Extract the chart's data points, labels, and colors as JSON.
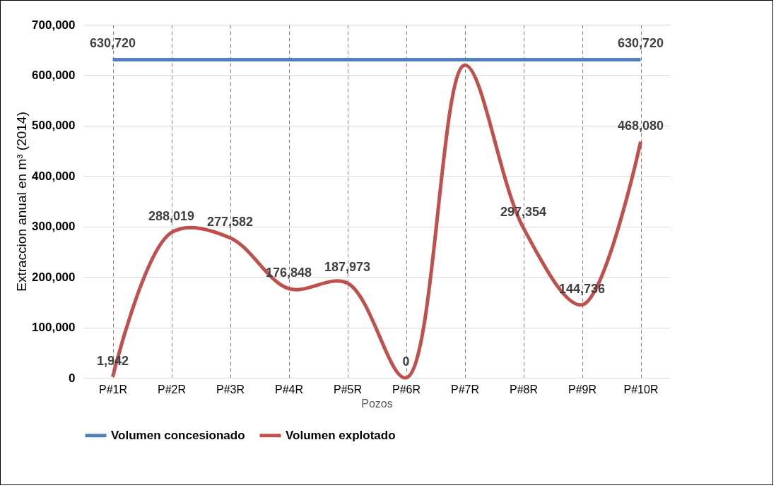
{
  "chart_data": {
    "type": "line",
    "xlabel": "Pozos",
    "ylabel": "Extraccion anual en m³ (2014)",
    "categories": [
      "P#1R",
      "P#2R",
      "P#3R",
      "P#4R",
      "P#5R",
      "P#6R",
      "P#7R",
      "P#8R",
      "P#9R",
      "P#10R"
    ],
    "series": [
      {
        "name": "Volumen concesionado",
        "color": "#4f81bd",
        "values": [
          630720,
          630720,
          630720,
          630720,
          630720,
          630720,
          630720,
          630720,
          630720,
          630720
        ],
        "value_labels": [
          "630,720",
          null,
          null,
          null,
          null,
          null,
          null,
          null,
          null,
          "630,720"
        ]
      },
      {
        "name": "Volumen explotado",
        "color": "#c0504d",
        "values": [
          1942,
          288019,
          277582,
          176848,
          187973,
          0,
          620000,
          297354,
          144736,
          468080
        ],
        "value_labels": [
          "1,942",
          "288,019",
          "277,582",
          "176,848",
          "187,973",
          "0",
          null,
          "297,354",
          "144,736",
          "468,080"
        ]
      }
    ],
    "ylim": [
      0,
      700000
    ],
    "yticks": [
      {
        "value": 0,
        "label": "0"
      },
      {
        "value": 100000,
        "label": "100,000"
      },
      {
        "value": 200000,
        "label": "200,000"
      },
      {
        "value": 300000,
        "label": "300,000"
      },
      {
        "value": 400000,
        "label": "400,000"
      },
      {
        "value": 500000,
        "label": "500,000"
      },
      {
        "value": 600000,
        "label": "600,000"
      },
      {
        "value": 700000,
        "label": "700,000"
      }
    ],
    "grid": true,
    "legend": "bottom",
    "marker": "none",
    "line_style": "solid"
  }
}
